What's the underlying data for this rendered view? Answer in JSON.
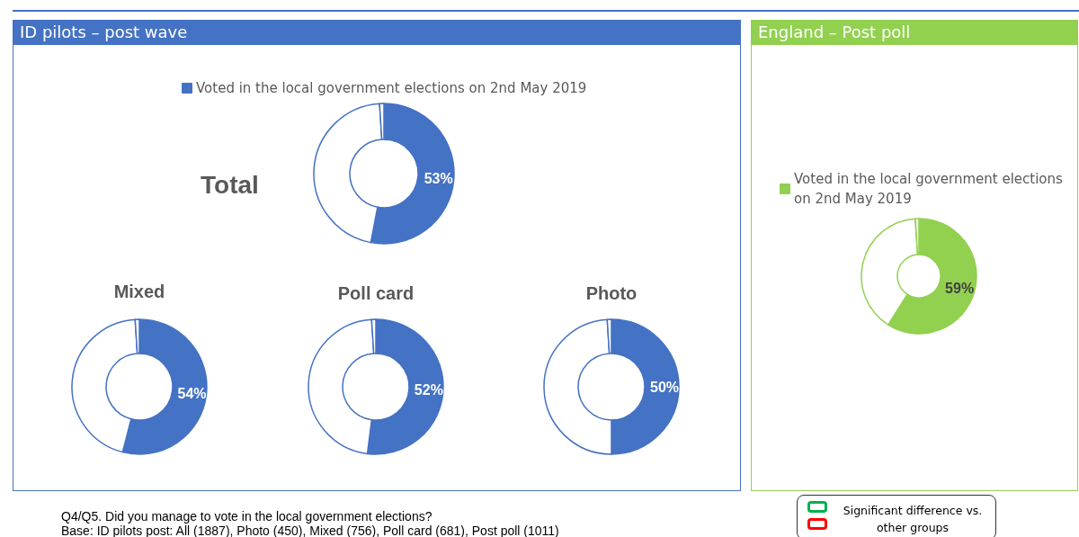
{
  "chart_data": [
    {
      "type": "donut",
      "title": "Total",
      "categories": [
        "Voted in the local government elections on 2nd May 2019",
        null,
        null
      ],
      "values": [
        53,
        46,
        1
      ],
      "colors": [
        "#4472c4",
        "#ffffff",
        "#ffffff"
      ],
      "value_labels": [
        "53%",
        null,
        null
      ],
      "legend": "top",
      "annotations": [
        "ID pilots – post wave",
        "Q4/Q5. Did you manage to vote in the local government elections?",
        "Base: ID pilots post: All (1887), Photo (450), Mixed (756), Poll card (681), Post poll (1011)",
        "Significant difference vs. other groups"
      ]
    },
    {
      "type": "donut",
      "title": "Mixed",
      "categories": [
        null,
        null,
        null
      ],
      "values": [
        54,
        45,
        1
      ],
      "colors": [
        "#4472c4",
        "#ffffff",
        "#ffffff"
      ],
      "value_labels": [
        "54%",
        null,
        null
      ]
    },
    {
      "type": "donut",
      "title": "Poll card",
      "categories": [
        null,
        null,
        null
      ],
      "values": [
        52,
        47,
        1
      ],
      "colors": [
        "#4472c4",
        "#ffffff",
        "#ffffff"
      ],
      "value_labels": [
        "52%",
        null,
        null
      ]
    },
    {
      "type": "donut",
      "title": "Photo",
      "categories": [
        null,
        null,
        null
      ],
      "values": [
        50,
        49,
        1
      ],
      "colors": [
        "#4472c4",
        "#ffffff",
        "#ffffff"
      ],
      "value_labels": [
        "50%",
        null,
        null
      ]
    },
    {
      "type": "donut",
      "categories": [
        "Voted in the local government elections on 2nd May 2019",
        null,
        null
      ],
      "values": [
        59,
        40,
        1
      ],
      "colors": [
        "#92d050",
        "#ffffff",
        "#ffffff"
      ],
      "value_labels": [
        "59%",
        null,
        null
      ],
      "legend": "top left",
      "annotations": [
        "England – Post poll"
      ]
    }
  ]
}
